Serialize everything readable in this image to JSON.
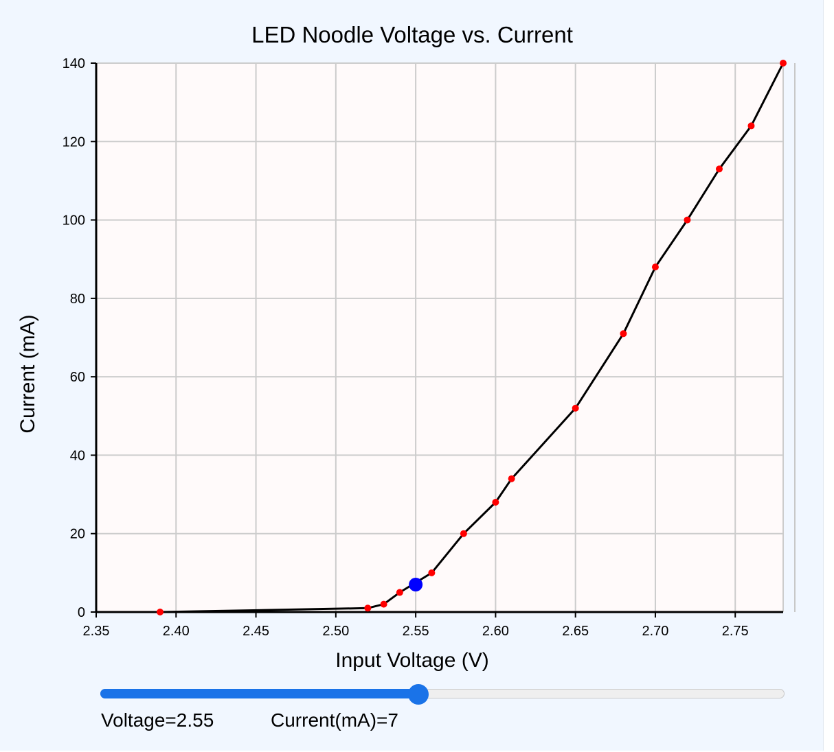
{
  "chart_data": {
    "type": "line",
    "title": "LED Noodle Voltage vs. Current",
    "xlabel": "Input Voltage (V)",
    "ylabel": "Current (mA)",
    "xlim": [
      2.35,
      2.78
    ],
    "ylim": [
      0,
      140
    ],
    "x_ticks": [
      "2.35",
      "2.40",
      "2.45",
      "2.50",
      "2.55",
      "2.60",
      "2.65",
      "2.70",
      "2.75"
    ],
    "y_ticks": [
      "0",
      "20",
      "40",
      "60",
      "80",
      "100",
      "120",
      "140"
    ],
    "grid": true,
    "line_color": "#000000",
    "point_color": "#ff0000",
    "highlight_color": "#0000ff",
    "plot_background": "#fffafa",
    "series": [
      {
        "x": [
          2.39,
          2.52,
          2.53,
          2.54,
          2.56,
          2.58,
          2.6,
          2.61,
          2.65,
          2.68,
          2.7,
          2.72,
          2.74,
          2.76,
          2.78
        ],
        "y": [
          0,
          1,
          2,
          5,
          10,
          20,
          28,
          34,
          52,
          71,
          88,
          100,
          113,
          124,
          140
        ]
      }
    ],
    "highlight": {
      "x": 2.55,
      "y": 7
    }
  },
  "slider": {
    "min": 2.35,
    "max": 2.78,
    "value": 2.55
  },
  "readout": {
    "voltage_text": "Voltage=2.55",
    "current_text": "Current(mA)=7"
  }
}
